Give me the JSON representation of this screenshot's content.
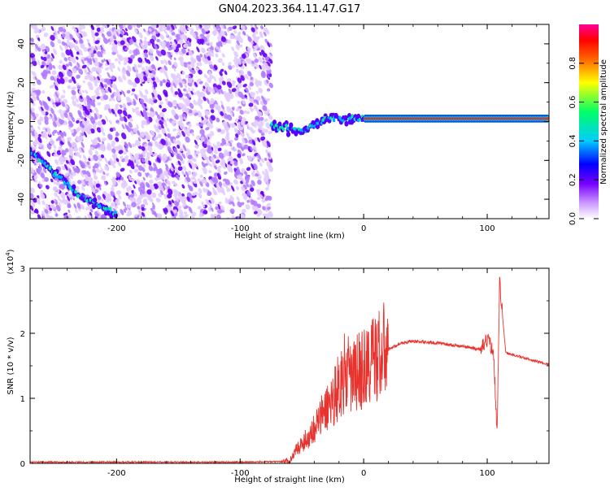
{
  "title": "GN04.2023.364.11.47.G17",
  "chart_data": [
    {
      "type": "heatmap",
      "xlabel": "Height of straight line (km)",
      "ylabel": "Frequency (Hz)",
      "xlim": [
        -270,
        150
      ],
      "ylim": [
        -50,
        50
      ],
      "xticks": [
        -200,
        -100,
        0,
        100
      ],
      "yticks": [
        -40,
        -20,
        0,
        20,
        40
      ],
      "colorbar": {
        "label": "Normalized spectral amplitude",
        "range": [
          0,
          1
        ],
        "ticks": [
          "0.0",
          "0.2",
          "0.4",
          "0.6",
          "0.8"
        ],
        "colors": [
          "#ffffff",
          "#cc99ff",
          "#7700ff",
          "#0000ff",
          "#00ccff",
          "#00ff66",
          "#ffff00",
          "#ff6600",
          "#ff0000",
          "#ff0099"
        ]
      },
      "features": [
        {
          "name": "",
          "x": [
            -270,
            -230,
            -200
          ],
          "y": [
            -15,
            -38,
            -48
          ]
        },
        {
          "name": "",
          "x": [
            -75,
            -50,
            -30,
            0,
            150
          ],
          "y": [
            -2,
            -5,
            2,
            1.5,
            1.5
          ]
        }
      ]
    },
    {
      "type": "line",
      "xlabel": "Height of straight line (km)",
      "ylabel": "SNR (10 * v/v)",
      "multiplier": "(x10",
      "multiplier_exp": "4",
      "xlim": [
        -270,
        150
      ],
      "ylim": [
        0,
        3
      ],
      "xticks": [
        -200,
        -100,
        0,
        100
      ],
      "yticks": [
        0,
        1,
        2,
        3
      ],
      "line_color": "#e8322e",
      "series": [
        {
          "x": [
            -270,
            -100,
            -60,
            -55,
            -45,
            -35,
            -25,
            -20,
            -15,
            -10,
            -5,
            0,
            10,
            20,
            30,
            40,
            60,
            80,
            95,
            100,
            105,
            108,
            110,
            115,
            130,
            150
          ],
          "y": [
            0.02,
            0.02,
            0.03,
            0.2,
            0.4,
            0.7,
            1.0,
            1.2,
            1.4,
            1.3,
            1.4,
            1.45,
            1.65,
            1.75,
            1.85,
            1.88,
            1.85,
            1.8,
            1.75,
            1.9,
            1.75,
            0.5,
            2.8,
            1.7,
            1.62,
            1.52
          ]
        }
      ]
    }
  ]
}
